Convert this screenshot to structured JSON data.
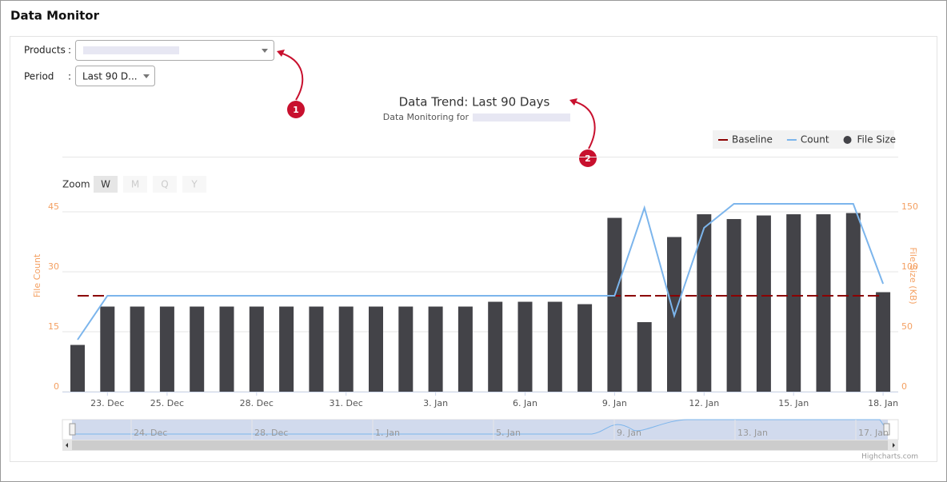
{
  "header": {
    "title": "Data Monitor"
  },
  "form": {
    "products_label": "Products",
    "period_label": "Period",
    "period_value": "Last 90 D..."
  },
  "annotations": [
    "1",
    "2"
  ],
  "zoom": {
    "label": "Zoom",
    "buttons": [
      "W",
      "M",
      "Q",
      "Y"
    ]
  },
  "navigator": {
    "labels": [
      "24. Dec",
      "28. Dec",
      "1. Jan",
      "5. Jan",
      "9. Jan",
      "13. Jan",
      "17. Jan"
    ]
  },
  "credits": "Highcharts.com",
  "chart_data": {
    "type": "combo",
    "title": "Data Trend: Last 90 Days",
    "subtitle": "Data Monitoring for",
    "ylabel": "File Count",
    "y2label": "File Size (KB)",
    "categories": [
      null,
      "23. Dec",
      null,
      "25. Dec",
      null,
      null,
      "28. Dec",
      null,
      null,
      "31. Dec",
      null,
      null,
      "3. Jan",
      null,
      null,
      "6. Jan",
      null,
      null,
      "9. Jan",
      null,
      null,
      "12. Jan",
      null,
      null,
      "15. Jan",
      null,
      null,
      "18. Jan"
    ],
    "ylim": [
      0,
      47
    ],
    "yticks": [
      0,
      15,
      30,
      45
    ],
    "y2lim": [
      0,
      156.7
    ],
    "y2ticks": [
      0,
      50,
      100,
      150
    ],
    "grid": true,
    "series": [
      {
        "name": "Baseline",
        "type": "dashed-line",
        "color": "#8b0000",
        "values": [
          24,
          24,
          24,
          24,
          24,
          24,
          24,
          24,
          24,
          24,
          24,
          24,
          24,
          24,
          24,
          24,
          24,
          24,
          24,
          24,
          24,
          24,
          24,
          24,
          24,
          24,
          24,
          24
        ]
      },
      {
        "name": "Count",
        "type": "line",
        "color": "#7cb5ec",
        "values": [
          13,
          24,
          24,
          24,
          24,
          24,
          24,
          24,
          24,
          24,
          24,
          24,
          24,
          24,
          24,
          24,
          24,
          24,
          24,
          46,
          19,
          41,
          47,
          47,
          47,
          47,
          47,
          27
        ]
      },
      {
        "name": "File Size",
        "type": "bar",
        "axis": "y2",
        "color": "#434348",
        "values": [
          39,
          71,
          71,
          71,
          71,
          71,
          71,
          71,
          71,
          71,
          71,
          71,
          71,
          71,
          75,
          75,
          75,
          73,
          145,
          58,
          129,
          148,
          144,
          147,
          148,
          148,
          149,
          83
        ]
      }
    ]
  }
}
